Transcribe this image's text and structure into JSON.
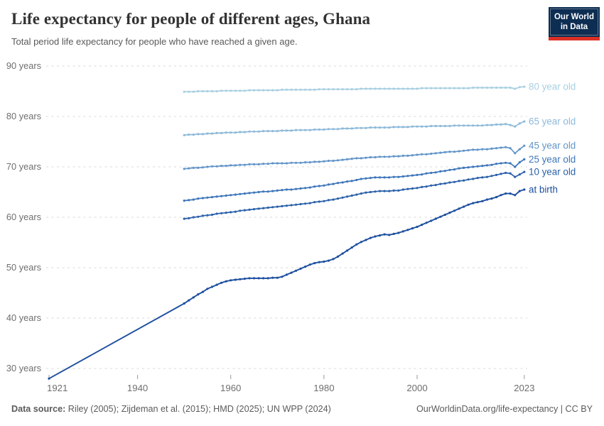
{
  "header": {
    "title": "Life expectancy for people of different ages, Ghana",
    "subtitle": "Total period life expectancy for people who have reached a given age.",
    "logo": {
      "line1": "Our World",
      "line2": "in Data"
    }
  },
  "footer": {
    "datasource_label": "Data source:",
    "datasource_text": " Riley (2005); Zijdeman et al. (2015); HMD (2025); UN WPP (2024)",
    "link_text": "OurWorldinData.org/life-expectancy | CC BY"
  },
  "colors": {
    "background": "#ffffff",
    "title_text": "#333333",
    "subtitle_text": "#595959",
    "axis_text": "#6e6e6e",
    "gridline": "#dadada",
    "tick": "#9a9a9a",
    "footer_text": "#5b5b5b",
    "logo_navy": "#0d2d52",
    "logo_red": "#dc3026"
  },
  "chart_data": {
    "type": "line",
    "title": "Life expectancy for people of different ages, Ghana",
    "xlabel": "",
    "ylabel": "",
    "xlim": [
      1921,
      2023
    ],
    "ylim": [
      27.5,
      91
    ],
    "grid": "horizontal-dashed",
    "legend_position": "line-end-right",
    "x_ticks": [
      1921,
      1940,
      1960,
      1980,
      2000,
      2023
    ],
    "x_tick_labels": [
      "1921",
      "1940",
      "1960",
      "1980",
      "2000",
      "2023"
    ],
    "y_ticks": [
      30,
      40,
      50,
      60,
      70,
      80,
      90
    ],
    "y_tick_labels": [
      "30 years",
      "40 years",
      "50 years",
      "60 years",
      "70 years",
      "80 years",
      "90 years"
    ],
    "series": [
      {
        "name": "80 year old",
        "color": "#a9cfe1",
        "start_year": 1950,
        "values": [
          84.9,
          84.9,
          84.9,
          85.0,
          85.0,
          85.0,
          85.0,
          85.0,
          85.1,
          85.1,
          85.1,
          85.1,
          85.1,
          85.1,
          85.2,
          85.2,
          85.2,
          85.2,
          85.2,
          85.2,
          85.2,
          85.3,
          85.3,
          85.3,
          85.3,
          85.3,
          85.3,
          85.3,
          85.3,
          85.4,
          85.4,
          85.4,
          85.4,
          85.4,
          85.4,
          85.4,
          85.4,
          85.4,
          85.5,
          85.5,
          85.5,
          85.5,
          85.5,
          85.5,
          85.5,
          85.5,
          85.5,
          85.5,
          85.5,
          85.5,
          85.5,
          85.6,
          85.6,
          85.6,
          85.6,
          85.6,
          85.6,
          85.6,
          85.6,
          85.6,
          85.6,
          85.6,
          85.7,
          85.7,
          85.7,
          85.7,
          85.7,
          85.7,
          85.7,
          85.7,
          85.7,
          85.5,
          85.8,
          85.9
        ]
      },
      {
        "name": "65 year old",
        "color": "#8db9d9",
        "start_year": 1950,
        "values": [
          76.3,
          76.4,
          76.4,
          76.5,
          76.5,
          76.6,
          76.6,
          76.7,
          76.7,
          76.8,
          76.8,
          76.8,
          76.9,
          76.9,
          77.0,
          77.0,
          77.0,
          77.1,
          77.1,
          77.1,
          77.1,
          77.2,
          77.2,
          77.2,
          77.3,
          77.3,
          77.3,
          77.3,
          77.4,
          77.4,
          77.4,
          77.5,
          77.5,
          77.5,
          77.6,
          77.6,
          77.6,
          77.7,
          77.7,
          77.7,
          77.8,
          77.8,
          77.8,
          77.8,
          77.8,
          77.9,
          77.9,
          77.9,
          77.9,
          78.0,
          78.0,
          78.0,
          78.0,
          78.1,
          78.1,
          78.1,
          78.1,
          78.1,
          78.2,
          78.2,
          78.2,
          78.2,
          78.2,
          78.2,
          78.2,
          78.3,
          78.3,
          78.4,
          78.4,
          78.5,
          78.3,
          78.0,
          78.6,
          79.0
        ]
      },
      {
        "name": "45 year old",
        "color": "#6295c9",
        "start_year": 1950,
        "values": [
          69.6,
          69.7,
          69.8,
          69.8,
          69.9,
          70.0,
          70.1,
          70.1,
          70.2,
          70.2,
          70.3,
          70.3,
          70.4,
          70.4,
          70.5,
          70.5,
          70.5,
          70.6,
          70.6,
          70.7,
          70.7,
          70.7,
          70.7,
          70.8,
          70.8,
          70.8,
          70.9,
          70.9,
          71.0,
          71.0,
          71.1,
          71.2,
          71.2,
          71.3,
          71.4,
          71.5,
          71.6,
          71.7,
          71.7,
          71.8,
          71.9,
          71.9,
          72.0,
          72.0,
          72.0,
          72.1,
          72.1,
          72.2,
          72.2,
          72.3,
          72.4,
          72.5,
          72.5,
          72.6,
          72.7,
          72.8,
          72.9,
          73.0,
          73.0,
          73.1,
          73.2,
          73.3,
          73.4,
          73.4,
          73.5,
          73.5,
          73.6,
          73.7,
          73.8,
          73.9,
          73.7,
          72.7,
          73.5,
          74.2
        ]
      },
      {
        "name": "25 year old",
        "color": "#3e76ba",
        "start_year": 1950,
        "values": [
          63.3,
          63.4,
          63.5,
          63.7,
          63.8,
          63.9,
          64.0,
          64.1,
          64.2,
          64.3,
          64.4,
          64.5,
          64.6,
          64.7,
          64.8,
          64.9,
          65.0,
          65.1,
          65.1,
          65.2,
          65.3,
          65.4,
          65.5,
          65.5,
          65.6,
          65.7,
          65.8,
          65.9,
          66.1,
          66.2,
          66.3,
          66.5,
          66.6,
          66.8,
          66.9,
          67.1,
          67.2,
          67.4,
          67.6,
          67.7,
          67.8,
          67.9,
          67.9,
          67.9,
          67.9,
          68.0,
          68.0,
          68.1,
          68.2,
          68.3,
          68.4,
          68.5,
          68.7,
          68.8,
          68.9,
          69.1,
          69.2,
          69.4,
          69.5,
          69.7,
          69.8,
          69.9,
          70.0,
          70.1,
          70.2,
          70.3,
          70.4,
          70.6,
          70.7,
          70.8,
          70.7,
          70.0,
          70.9,
          71.5
        ]
      },
      {
        "name": "10 year old",
        "color": "#2b61a9",
        "start_year": 1950,
        "values": [
          59.7,
          59.8,
          60.0,
          60.1,
          60.3,
          60.4,
          60.5,
          60.7,
          60.8,
          60.9,
          61.0,
          61.1,
          61.3,
          61.4,
          61.5,
          61.6,
          61.7,
          61.8,
          61.9,
          62.0,
          62.1,
          62.2,
          62.3,
          62.4,
          62.5,
          62.6,
          62.7,
          62.8,
          63.0,
          63.1,
          63.2,
          63.4,
          63.5,
          63.7,
          63.9,
          64.1,
          64.3,
          64.5,
          64.7,
          64.9,
          65.0,
          65.1,
          65.2,
          65.2,
          65.2,
          65.3,
          65.3,
          65.5,
          65.6,
          65.7,
          65.8,
          66.0,
          66.1,
          66.3,
          66.4,
          66.6,
          66.7,
          66.9,
          67.0,
          67.2,
          67.3,
          67.5,
          67.6,
          67.8,
          67.9,
          68.0,
          68.2,
          68.4,
          68.6,
          68.8,
          68.7,
          68.0,
          68.5,
          69.0
        ]
      },
      {
        "name": "at birth",
        "color": "#1d4f9f",
        "origin": [
          1921,
          28.0
        ],
        "start_year": 1950,
        "values": [
          42.9,
          43.5,
          44.1,
          44.7,
          45.2,
          45.8,
          46.2,
          46.6,
          47.0,
          47.3,
          47.5,
          47.6,
          47.7,
          47.8,
          47.9,
          47.9,
          47.9,
          47.9,
          47.9,
          48.0,
          48.0,
          48.2,
          48.6,
          49.0,
          49.4,
          49.8,
          50.2,
          50.6,
          50.9,
          51.1,
          51.2,
          51.4,
          51.7,
          52.2,
          52.8,
          53.4,
          54.0,
          54.6,
          55.1,
          55.5,
          55.9,
          56.2,
          56.4,
          56.6,
          56.5,
          56.7,
          56.9,
          57.2,
          57.5,
          57.8,
          58.1,
          58.5,
          58.9,
          59.3,
          59.7,
          60.1,
          60.5,
          60.9,
          61.3,
          61.7,
          62.1,
          62.5,
          62.8,
          63.0,
          63.2,
          63.5,
          63.7,
          64.0,
          64.4,
          64.7,
          64.7,
          64.4,
          65.2,
          65.5
        ]
      }
    ]
  }
}
